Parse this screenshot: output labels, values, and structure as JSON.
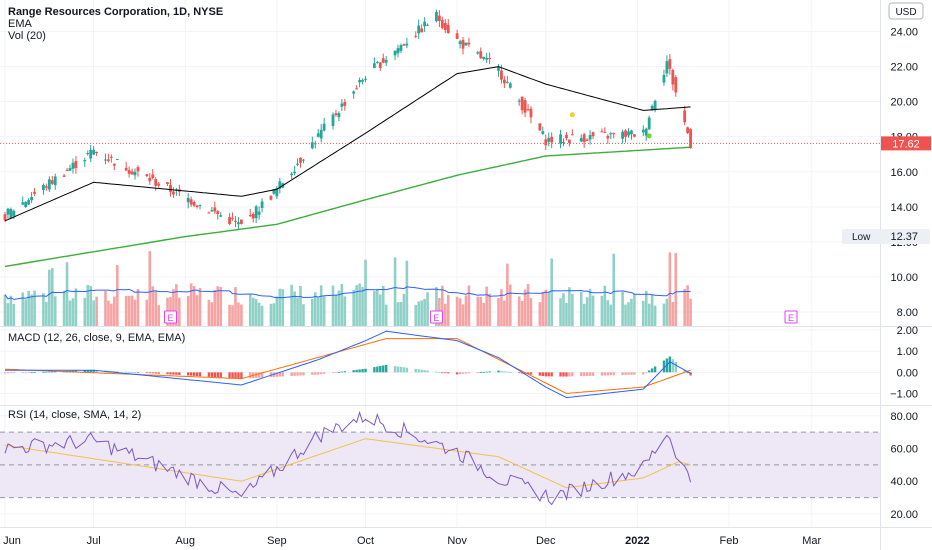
{
  "header": {
    "title": "Range Resources Corporation, 1D, NYSE",
    "ema_label": "EMA",
    "vol_label": "Vol (20)",
    "currency_button": "USD"
  },
  "colors": {
    "up": "#26a69a",
    "down": "#ef5350",
    "up_vol": "#8fd0c7",
    "down_vol": "#f5a3a3",
    "ema50": "#000000",
    "ema200": "#3cae3c",
    "vol_ma": "#2962ff",
    "macd": "#2962ff",
    "signal": "#ff6d00",
    "rsi": "#7e57c2",
    "rsi_ma": "#f2c14e",
    "rsi_band": "#ede7f6",
    "grid": "#f0f3fa",
    "price_line": "#ef5350",
    "earnings": "#e040fb"
  },
  "chart_data": [
    {
      "type": "candlestick",
      "title": "Range Resources Corporation, 1D, NYSE",
      "x_axis_ticks": [
        "Jun",
        "Jul",
        "Aug",
        "Sep",
        "Oct",
        "Nov",
        "Dec",
        "2022",
        "Feb",
        "Mar"
      ],
      "y_axis_ticks": [
        "24.00",
        "22.00",
        "20.00",
        "18.00",
        "16.00",
        "14.00",
        "12.00",
        "10.00",
        "8.00"
      ],
      "ylim": [
        7.2,
        25.8
      ],
      "grid": true,
      "last_price": "17.62",
      "low_label": "Low",
      "low_value": "12.37",
      "earnings_marker": "E",
      "events": [
        {
          "label": "E",
          "date": "Jul 27"
        },
        {
          "label": "E",
          "date": "Oct 25"
        },
        {
          "label": "E",
          "date": "Feb 22"
        }
      ],
      "key_closes": [
        {
          "date": "Jun 1",
          "close": 13.5
        },
        {
          "date": "Jul 1",
          "close": 17.2
        },
        {
          "date": "Aug 20",
          "close": 12.9
        },
        {
          "date": "Sep 1",
          "close": 15.0
        },
        {
          "date": "Oct 1",
          "close": 21.5
        },
        {
          "date": "Oct 25",
          "close": 24.9
        },
        {
          "date": "Nov 1",
          "close": 23.5
        },
        {
          "date": "Nov 15",
          "close": 21.8
        },
        {
          "date": "Dec 1",
          "close": 17.8
        },
        {
          "date": "Jan 3",
          "close": 18.2
        },
        {
          "date": "Jan 11",
          "close": 22.3
        },
        {
          "date": "Jan 19",
          "close": 17.62
        }
      ],
      "series": [
        {
          "name": "EMA",
          "key_values": [
            {
              "date": "Jun 1",
              "value": 13.2
            },
            {
              "date": "Jul 1",
              "value": 15.4
            },
            {
              "date": "Aug 20",
              "value": 14.6
            },
            {
              "date": "Sep 1",
              "value": 15.0
            },
            {
              "date": "Oct 1",
              "value": 18.2
            },
            {
              "date": "Nov 1",
              "value": 21.6
            },
            {
              "date": "Nov 15",
              "value": 22.0
            },
            {
              "date": "Dec 1",
              "value": 21.0
            },
            {
              "date": "Jan 3",
              "value": 19.5
            },
            {
              "date": "Jan 19",
              "value": 19.7
            }
          ]
        },
        {
          "name": "",
          "key_values": [
            {
              "date": "Jun 1",
              "value": 10.6
            },
            {
              "date": "Aug 1",
              "value": 12.3
            },
            {
              "date": "Sep 1",
              "value": 13.0
            },
            {
              "date": "Oct 1",
              "value": 14.4
            },
            {
              "date": "Nov 1",
              "value": 15.8
            },
            {
              "date": "Dec 1",
              "value": 16.9
            },
            {
              "date": "Jan 19",
              "value": 17.4
            }
          ]
        }
      ]
    },
    {
      "type": "bar",
      "title": "Vol (20)",
      "note": "volume histogram overlaid on price pane, colored by candle direction, with moving-average line",
      "relative_levels": {
        "low": 0.25,
        "typical": 0.35,
        "high": 0.85
      }
    },
    {
      "type": "line",
      "title": "MACD (12, 26, close, 9, EMA, EMA)",
      "y_axis_ticks": [
        "2.00",
        "1.00",
        "0.00",
        "−1.00"
      ],
      "ylim": [
        -1.55,
        2.15
      ],
      "series": [
        {
          "name": "",
          "key_values": [
            {
              "date": "Jun 1",
              "value": 0.1
            },
            {
              "date": "Jul 1",
              "value": 0.1
            },
            {
              "date": "Aug 20",
              "value": -0.6
            },
            {
              "date": "Sep 15",
              "value": 0.6
            },
            {
              "date": "Oct 1",
              "value": 1.5
            },
            {
              "date": "Oct 8",
              "value": 1.95
            },
            {
              "date": "Nov 1",
              "value": 1.5
            },
            {
              "date": "Nov 15",
              "value": 0.7
            },
            {
              "date": "Dec 1",
              "value": -0.7
            },
            {
              "date": "Dec 8",
              "value": -1.2
            },
            {
              "date": "Jan 3",
              "value": -0.8
            },
            {
              "date": "Jan 12",
              "value": 0.5
            },
            {
              "date": "Jan 19",
              "value": -0.05
            }
          ]
        },
        {
          "name": "",
          "key_values": [
            {
              "date": "Jun 1",
              "value": 0.15
            },
            {
              "date": "Aug 20",
              "value": -0.3
            },
            {
              "date": "Oct 8",
              "value": 1.6
            },
            {
              "date": "Nov 1",
              "value": 1.6
            },
            {
              "date": "Dec 8",
              "value": -1.0
            },
            {
              "date": "Jan 3",
              "value": -0.7
            },
            {
              "date": "Jan 19",
              "value": 0.1
            }
          ]
        }
      ]
    },
    {
      "type": "line",
      "title": "RSI (14, close, SMA, 14, 2)",
      "y_axis_ticks": [
        "80.00",
        "60.00",
        "40.00",
        "20.00"
      ],
      "ylim": [
        12,
        86
      ],
      "bands": [
        70,
        50,
        30
      ],
      "series": [
        {
          "name": "",
          "key_values": [
            {
              "date": "Jun 1",
              "value": 60
            },
            {
              "date": "Jul 1",
              "value": 65
            },
            {
              "date": "Aug 20",
              "value": 30
            },
            {
              "date": "Sep 15",
              "value": 68
            },
            {
              "date": "Oct 1",
              "value": 80
            },
            {
              "date": "Nov 1",
              "value": 58
            },
            {
              "date": "Nov 15",
              "value": 42
            },
            {
              "date": "Dec 3",
              "value": 30
            },
            {
              "date": "Jan 3",
              "value": 48
            },
            {
              "date": "Jan 11",
              "value": 70
            },
            {
              "date": "Jan 19",
              "value": 40
            }
          ]
        },
        {
          "name": "",
          "key_values": [
            {
              "date": "Jun 1",
              "value": 62
            },
            {
              "date": "Aug 20",
              "value": 40
            },
            {
              "date": "Oct 1",
              "value": 66
            },
            {
              "date": "Nov 15",
              "value": 55
            },
            {
              "date": "Dec 8",
              "value": 36
            },
            {
              "date": "Jan 3",
              "value": 42
            },
            {
              "date": "Jan 15",
              "value": 52
            },
            {
              "date": "Jan 19",
              "value": 50
            }
          ]
        }
      ]
    }
  ]
}
